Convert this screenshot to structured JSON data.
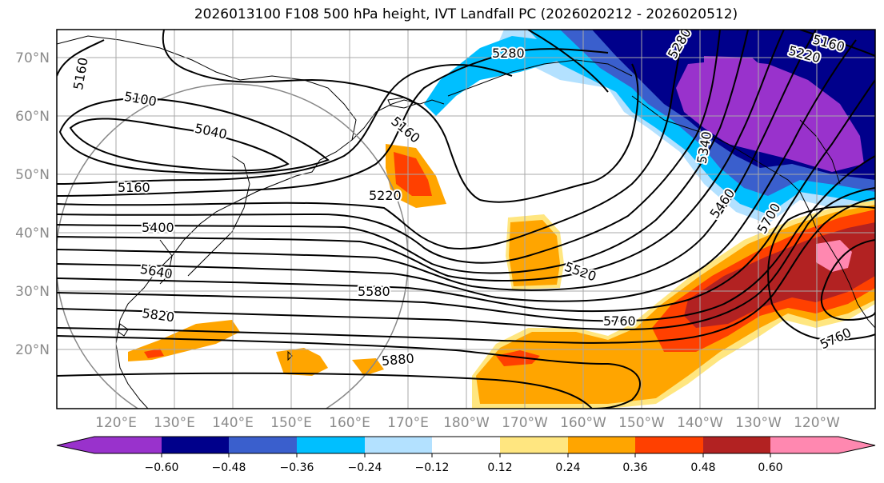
{
  "title": "2026013100 F108 500 hPa height, IVT Landfall PC (2026020212 - 2026020512)",
  "map": {
    "lat_labels": [
      "70°N",
      "60°N",
      "50°N",
      "40°N",
      "30°N",
      "20°N"
    ],
    "lon_labels": [
      "120°E",
      "130°E",
      "140°E",
      "150°E",
      "160°E",
      "170°E",
      "180°W",
      "170°W",
      "160°W",
      "150°W",
      "140°W",
      "130°W",
      "120°W"
    ],
    "contour_labels": [
      "5280",
      "5280",
      "5160",
      "5220",
      "5160",
      "5100",
      "5040",
      "5160",
      "5160",
      "5220",
      "5340",
      "5460",
      "5700",
      "5400",
      "5640",
      "5580",
      "5520",
      "5760",
      "5760",
      "5820",
      "5880"
    ]
  },
  "colorbar": {
    "tick_labels": [
      "−0.60",
      "−0.48",
      "−0.36",
      "−0.24",
      "−0.12",
      "0.12",
      "0.24",
      "0.36",
      "0.48",
      "0.60"
    ],
    "colors": [
      "#9932cc",
      "#00008b",
      "#3a5fcd",
      "#00bfff",
      "#b3e1ff",
      "#ffffff",
      "#ffe680",
      "#ffa500",
      "#ff4000",
      "#b22222",
      "#ff88b0"
    ]
  }
}
